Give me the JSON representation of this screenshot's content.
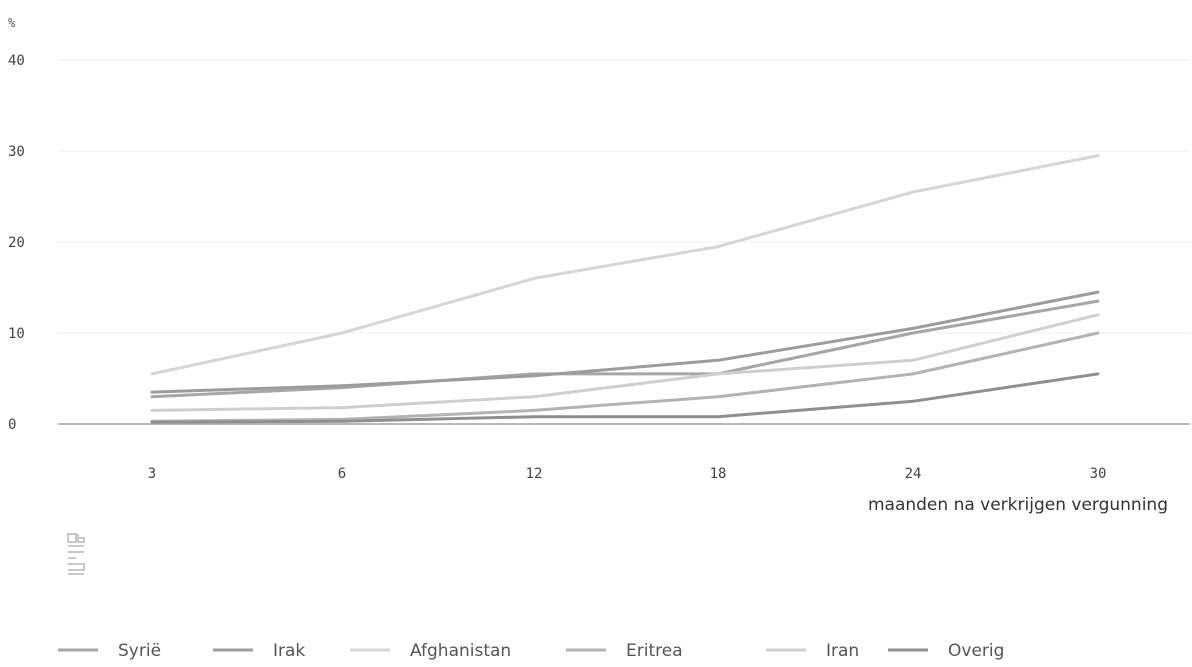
{
  "chart_data": {
    "type": "line",
    "unit_label": "%",
    "xlabel": "maanden na verkrijgen vergunning",
    "categories": [
      "3",
      "6",
      "12",
      "18",
      "24",
      "30"
    ],
    "ylim": [
      0,
      40
    ],
    "yticks": [
      "0",
      "10",
      "20",
      "30",
      "40"
    ],
    "grid": true,
    "legend_position": "bottom",
    "series": [
      {
        "name": "Syrië",
        "color": "#a6a6a6",
        "values": [
          3.0,
          4.0,
          5.5,
          5.5,
          10.0,
          13.5
        ]
      },
      {
        "name": "Irak",
        "color": "#9c9c9c",
        "values": [
          3.5,
          4.2,
          5.3,
          7.0,
          10.5,
          14.5
        ]
      },
      {
        "name": "Afghanistan",
        "color": "#d6d6d6",
        "values": [
          5.5,
          10.0,
          16.0,
          19.5,
          25.5,
          29.5
        ]
      },
      {
        "name": "Eritrea",
        "color": "#b3b3b3",
        "values": [
          0.3,
          0.5,
          1.5,
          3.0,
          5.5,
          10.0
        ]
      },
      {
        "name": "Iran",
        "color": "#cfcfcf",
        "values": [
          1.5,
          1.8,
          3.0,
          5.5,
          7.0,
          12.0
        ]
      },
      {
        "name": "Overig",
        "color": "#8f8f8f",
        "values": [
          0.2,
          0.3,
          0.8,
          0.8,
          2.5,
          5.5
        ]
      }
    ],
    "source_logo_text": "cbs"
  }
}
